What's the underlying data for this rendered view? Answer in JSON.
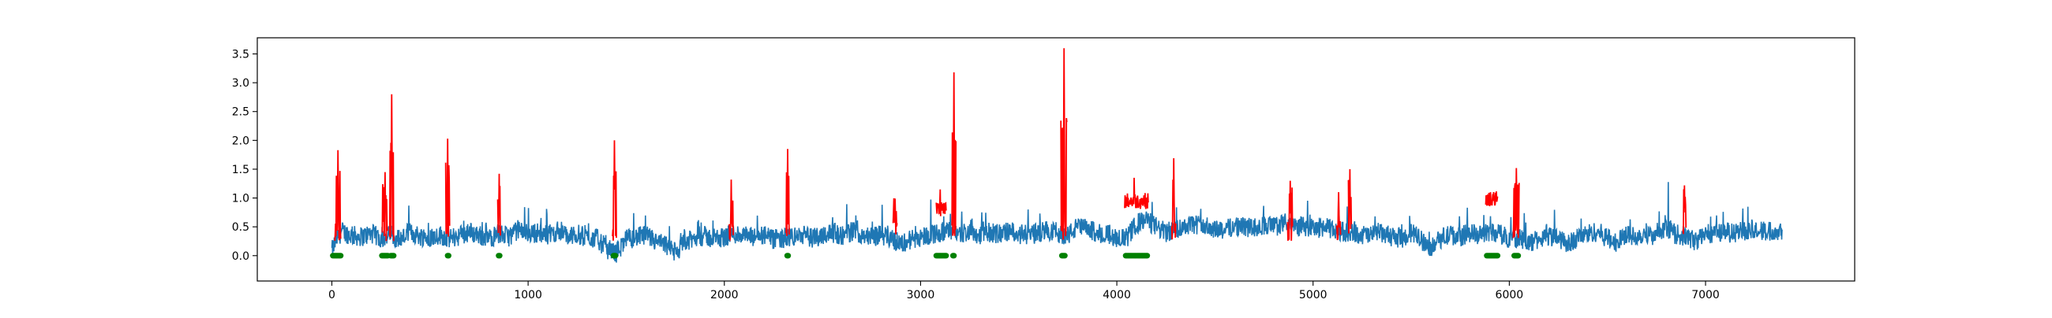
{
  "chart_data": {
    "type": "line",
    "title": "",
    "xlabel": "",
    "ylabel": "",
    "xlim": [
      -380,
      7760
    ],
    "ylim": [
      -0.44,
      3.78
    ],
    "xticks": [
      0,
      1000,
      2000,
      3000,
      4000,
      5000,
      6000,
      7000
    ],
    "yticks": [
      0.0,
      0.5,
      1.0,
      1.5,
      2.0,
      2.5,
      3.0,
      3.5
    ],
    "xtick_labels": [
      "0",
      "1000",
      "2000",
      "3000",
      "4000",
      "5000",
      "6000",
      "7000"
    ],
    "ytick_labels": [
      "0.0",
      "0.5",
      "1.0",
      "1.5",
      "2.0",
      "2.5",
      "3.0",
      "3.5"
    ],
    "grid": false,
    "legend": "none",
    "colors": {
      "signal": "#1f77b4",
      "anomaly": "#ff0000",
      "marker": "#008000"
    },
    "series": [
      {
        "role": "signal",
        "x": [
          0,
          25,
          50,
          100,
          150,
          200,
          250,
          300,
          350,
          400,
          450,
          500,
          550,
          600,
          650,
          700,
          750,
          800,
          850,
          900,
          950,
          1000,
          1050,
          1100,
          1150,
          1200,
          1250,
          1300,
          1350,
          1400,
          1450,
          1500,
          1550,
          1600,
          1650,
          1700,
          1750,
          1800,
          1850,
          1900,
          1950,
          2000,
          2050,
          2100,
          2150,
          2200,
          2250,
          2300,
          2350,
          2400,
          2450,
          2500,
          2550,
          2600,
          2650,
          2700,
          2750,
          2800,
          2850,
          2900,
          2950,
          3000,
          3050,
          3100,
          3150,
          3200,
          3250,
          3300,
          3350,
          3400,
          3450,
          3500,
          3550,
          3600,
          3650,
          3700,
          3750,
          3800,
          3850,
          3900,
          3950,
          4000,
          4050,
          4100,
          4150,
          4200,
          4250,
          4300,
          4350,
          4400,
          4450,
          4500,
          4550,
          4600,
          4650,
          4700,
          4750,
          4800,
          4850,
          4900,
          4950,
          5000,
          5050,
          5100,
          5150,
          5200,
          5250,
          5300,
          5350,
          5400,
          5450,
          5500,
          5550,
          5600,
          5650,
          5700,
          5750,
          5800,
          5850,
          5900,
          5950,
          6000,
          6050,
          6100,
          6150,
          6200,
          6250,
          6300,
          6350,
          6400,
          6450,
          6500,
          6550,
          6600,
          6650,
          6700,
          6750,
          6800,
          6850,
          6900,
          6950,
          7000,
          7050,
          7100,
          7150,
          7200,
          7250,
          7300,
          7390
        ],
        "y": [
          0.08,
          0.3,
          0.42,
          0.35,
          0.33,
          0.38,
          0.3,
          0.36,
          0.29,
          0.4,
          0.34,
          0.32,
          0.36,
          0.3,
          0.35,
          0.41,
          0.36,
          0.3,
          0.38,
          0.33,
          0.45,
          0.38,
          0.4,
          0.36,
          0.42,
          0.33,
          0.37,
          0.31,
          0.3,
          0.12,
          0.05,
          0.28,
          0.32,
          0.35,
          0.24,
          0.18,
          0.05,
          0.22,
          0.3,
          0.34,
          0.28,
          0.33,
          0.38,
          0.35,
          0.31,
          0.36,
          0.27,
          0.3,
          0.33,
          0.36,
          0.3,
          0.37,
          0.4,
          0.35,
          0.42,
          0.38,
          0.33,
          0.36,
          0.3,
          0.2,
          0.28,
          0.33,
          0.36,
          0.4,
          0.42,
          0.38,
          0.42,
          0.36,
          0.4,
          0.38,
          0.42,
          0.38,
          0.35,
          0.4,
          0.44,
          0.4,
          0.35,
          0.5,
          0.46,
          0.4,
          0.38,
          0.32,
          0.3,
          0.55,
          0.62,
          0.5,
          0.4,
          0.45,
          0.52,
          0.55,
          0.5,
          0.48,
          0.45,
          0.52,
          0.5,
          0.47,
          0.54,
          0.5,
          0.55,
          0.48,
          0.52,
          0.46,
          0.5,
          0.45,
          0.42,
          0.4,
          0.36,
          0.35,
          0.38,
          0.33,
          0.3,
          0.4,
          0.28,
          0.15,
          0.3,
          0.36,
          0.33,
          0.4,
          0.35,
          0.42,
          0.38,
          0.3,
          0.32,
          0.22,
          0.28,
          0.35,
          0.3,
          0.2,
          0.32,
          0.38,
          0.42,
          0.3,
          0.22,
          0.38,
          0.34,
          0.4,
          0.31,
          0.45,
          0.37,
          0.33,
          0.25,
          0.38,
          0.4,
          0.42,
          0.38,
          0.44,
          0.46,
          0.42,
          0.45
        ],
        "amplitude": 0.22
      }
    ],
    "anomaly_segments": [
      {
        "x": [
          15,
          45
        ],
        "peak": 1.83
      },
      {
        "x": [
          255,
          285
        ],
        "peak": 1.45
      },
      {
        "x": [
          295,
          315
        ],
        "peak": 2.8
      },
      {
        "x": [
          580,
          600
        ],
        "peak": 2.03
      },
      {
        "x": [
          845,
          860
        ],
        "peak": 1.42
      },
      {
        "x": [
          1430,
          1450
        ],
        "peak": 2.0
      },
      {
        "x": [
          2025,
          2045
        ],
        "peak": 1.32
      },
      {
        "x": [
          2315,
          2330
        ],
        "peak": 1.85
      },
      {
        "x": [
          2860,
          2880
        ],
        "peak": 0.99
      },
      {
        "x": [
          3080,
          3130
        ],
        "peak": 1.15,
        "level": 0.82
      },
      {
        "x": [
          3160,
          3180
        ],
        "peak": 3.18
      },
      {
        "x": [
          3715,
          3745
        ],
        "peak": 3.6
      },
      {
        "x": [
          4040,
          4160
        ],
        "peak": 1.35,
        "level": 0.95
      },
      {
        "x": [
          4280,
          4300
        ],
        "peak": 1.69
      },
      {
        "x": [
          4870,
          4895
        ],
        "peak": 1.3
      },
      {
        "x": [
          5120,
          5140
        ],
        "peak": 1.1
      },
      {
        "x": [
          5180,
          5195
        ],
        "peak": 1.5
      },
      {
        "x": [
          5880,
          5940
        ],
        "peak": 1.1,
        "level": 0.98
      },
      {
        "x": [
          6020,
          6050
        ],
        "peak": 1.52
      },
      {
        "x": [
          6885,
          6900
        ],
        "peak": 1.22
      }
    ],
    "markers": {
      "y": 0.0,
      "x": [
        5,
        10,
        15,
        20,
        25,
        30,
        35,
        40,
        45,
        255,
        260,
        265,
        270,
        275,
        280,
        285,
        300,
        305,
        310,
        315,
        590,
        595,
        850,
        855,
        1435,
        1440,
        1445,
        2320,
        2325,
        3080,
        3085,
        3090,
        3095,
        3100,
        3105,
        3110,
        3115,
        3120,
        3125,
        3130,
        3165,
        3170,
        3720,
        3725,
        3730,
        3735,
        4045,
        4050,
        4055,
        4060,
        4065,
        4070,
        4075,
        4080,
        4085,
        4090,
        4095,
        4100,
        4105,
        4110,
        4115,
        4120,
        4125,
        4130,
        4135,
        4140,
        4145,
        4150,
        4155,
        5885,
        5890,
        5895,
        5900,
        5905,
        5910,
        5915,
        5920,
        5925,
        5930,
        5935,
        5940,
        6025,
        6030,
        6035,
        6040,
        6045
      ]
    }
  }
}
